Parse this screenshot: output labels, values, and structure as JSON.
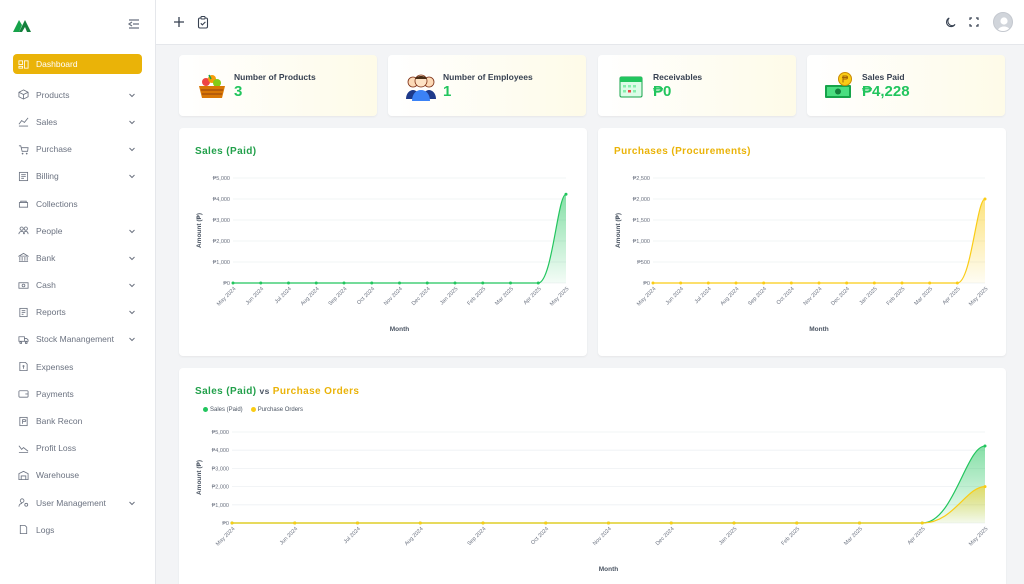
{
  "sidebar": {
    "items": [
      {
        "label": "Dashboard",
        "icon": "dashboard-icon",
        "active": true,
        "chevron": false
      },
      {
        "label": "Products",
        "icon": "box-icon",
        "chevron": true
      },
      {
        "label": "Sales",
        "icon": "line-chart-icon",
        "chevron": true
      },
      {
        "label": "Purchase",
        "icon": "cart-icon",
        "chevron": true
      },
      {
        "label": "Billing",
        "icon": "invoice-icon",
        "chevron": true
      },
      {
        "label": "Collections",
        "icon": "collections-icon",
        "chevron": false
      },
      {
        "label": "People",
        "icon": "people-icon",
        "chevron": true
      },
      {
        "label": "Bank",
        "icon": "bank-icon",
        "chevron": true
      },
      {
        "label": "Cash",
        "icon": "cash-icon",
        "chevron": true
      },
      {
        "label": "Reports",
        "icon": "reports-icon",
        "chevron": true
      },
      {
        "label": "Stock Manangement",
        "icon": "truck-icon",
        "chevron": true
      },
      {
        "label": "Expenses",
        "icon": "expenses-icon",
        "chevron": false
      },
      {
        "label": "Payments",
        "icon": "wallet-icon",
        "chevron": false
      },
      {
        "label": "Bank Recon",
        "icon": "bank-recon-icon",
        "chevron": false
      },
      {
        "label": "Profit Loss",
        "icon": "profit-loss-icon",
        "chevron": false
      },
      {
        "label": "Warehouse",
        "icon": "warehouse-icon",
        "chevron": false
      },
      {
        "label": "User Management",
        "icon": "user-gear-icon",
        "chevron": true
      },
      {
        "label": "Logs",
        "icon": "file-icon",
        "chevron": false
      }
    ]
  },
  "stats": [
    {
      "label": "Number of Products",
      "value": "3",
      "icon": "fruit-basket-icon"
    },
    {
      "label": "Number of Employees",
      "value": "1",
      "icon": "employees-icon"
    },
    {
      "label": "Receivables",
      "value": "₱0",
      "icon": "calendar-icon"
    },
    {
      "label": "Sales Paid",
      "value": "₱4,228",
      "icon": "money-icon"
    }
  ],
  "colors": {
    "green": "#22c55e",
    "yellow": "#eab308"
  },
  "chart_data": [
    {
      "type": "area",
      "title": "Sales (Paid)",
      "xlabel": "Month",
      "ylabel": "Amount (₱)",
      "categories": [
        "May 2024",
        "Jun 2024",
        "Jul 2024",
        "Aug 2024",
        "Sep 2024",
        "Oct 2024",
        "Nov 2024",
        "Dec 2024",
        "Jan 2025",
        "Feb 2025",
        "Mar 2025",
        "Apr 2025",
        "May 2025"
      ],
      "yticks": [
        "₱0",
        "₱1,000",
        "₱2,000",
        "₱3,000",
        "₱4,000",
        "₱5,000"
      ],
      "ylim": [
        0,
        5000
      ],
      "series": [
        {
          "values": [
            0,
            0,
            0,
            0,
            0,
            0,
            0,
            0,
            0,
            0,
            0,
            0,
            4228
          ],
          "color": "#22c55e"
        }
      ]
    },
    {
      "type": "area",
      "title": "Purchases (Procurements)",
      "xlabel": "Month",
      "ylabel": "Amount (₱)",
      "categories": [
        "May 2024",
        "Jun 2024",
        "Jul 2024",
        "Aug 2024",
        "Sep 2024",
        "Oct 2024",
        "Nov 2024",
        "Dec 2024",
        "Jan 2025",
        "Feb 2025",
        "Mar 2025",
        "Apr 2025",
        "May 2025"
      ],
      "yticks": [
        "₱0",
        "₱500",
        "₱1,000",
        "₱1,500",
        "₱2,000",
        "₱2,500"
      ],
      "ylim": [
        0,
        2500
      ],
      "series": [
        {
          "values": [
            0,
            0,
            0,
            0,
            0,
            0,
            0,
            0,
            0,
            0,
            0,
            0,
            2000
          ],
          "color": "#facc15"
        }
      ]
    },
    {
      "type": "area",
      "title_part1": "Sales (Paid)",
      "title_vs": "vs",
      "title_part2": "Purchase Orders",
      "xlabel": "Month",
      "ylabel": "Amount (₱)",
      "categories": [
        "May 2024",
        "Jun 2024",
        "Jul 2024",
        "Aug 2024",
        "Sep 2024",
        "Oct 2024",
        "Nov 2024",
        "Dec 2024",
        "Jan 2025",
        "Feb 2025",
        "Mar 2025",
        "Apr 2025",
        "May 2025"
      ],
      "yticks": [
        "₱0",
        "₱1,000",
        "₱2,000",
        "₱3,000",
        "₱4,000",
        "₱5,000"
      ],
      "ylim": [
        0,
        5000
      ],
      "legend": "top-left",
      "series": [
        {
          "name": "Sales (Paid)",
          "values": [
            0,
            0,
            0,
            0,
            0,
            0,
            0,
            0,
            0,
            0,
            0,
            0,
            4228
          ],
          "color": "#22c55e"
        },
        {
          "name": "Purchase Orders",
          "values": [
            0,
            0,
            0,
            0,
            0,
            0,
            0,
            0,
            0,
            0,
            0,
            0,
            2000
          ],
          "color": "#facc15"
        }
      ]
    }
  ]
}
